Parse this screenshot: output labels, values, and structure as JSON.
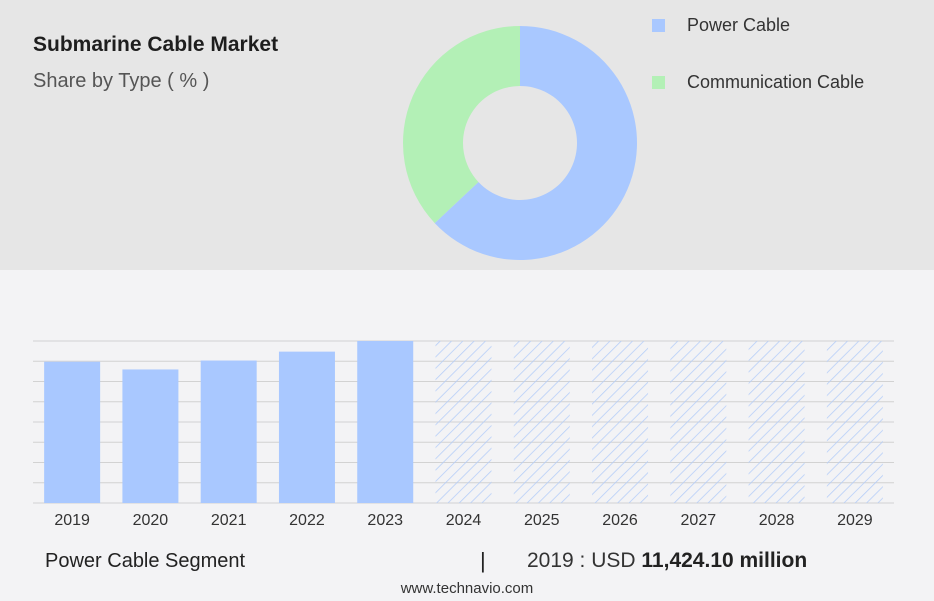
{
  "header": {
    "title": "Submarine Cable Market",
    "subtitle": "Share by Type ( % )"
  },
  "footer": {
    "segment_label": "Power Cable Segment",
    "separator": "|",
    "value_prefix": "2019 : USD ",
    "value_strong": "11,424.10 million",
    "website": "www.technavio.com"
  },
  "colors": {
    "power_cable": "#a9c8ff",
    "communication_cable": "#b3f0b6",
    "bar": "#a9c8ff",
    "hatch": "#b6cef8"
  },
  "chart_data": [
    {
      "type": "pie",
      "title": "Submarine Cable Market",
      "subtitle": "Share by Type ( % )",
      "donut": true,
      "legend_position": "top-right",
      "slices": [
        {
          "name": "Power Cable",
          "value": 63
        },
        {
          "name": "Communication Cable",
          "value": 37
        }
      ]
    },
    {
      "type": "bar",
      "series_name": "Power Cable Segment",
      "categories": [
        "2019",
        "2020",
        "2021",
        "2022",
        "2023",
        "2024",
        "2025",
        "2026",
        "2027",
        "2028",
        "2029"
      ],
      "values": [
        11424.1,
        10800,
        11520,
        12240,
        13100,
        null,
        null,
        null,
        null,
        null,
        null
      ],
      "forecast_from_index": 5,
      "ylim": [
        0,
        13100
      ],
      "grid": true
    }
  ]
}
